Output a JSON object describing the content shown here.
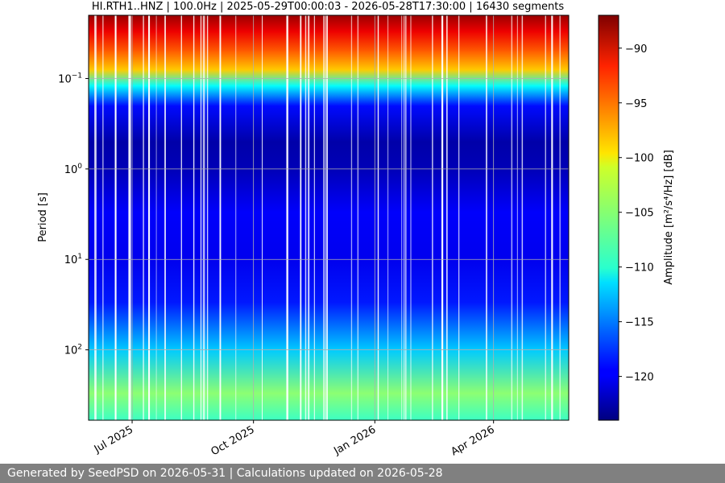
{
  "chart_data": {
    "type": "heatmap",
    "title": "HI.RTH1..HNZ | 100.0Hz | 2025-05-29T00:00:03 - 2026-05-28T17:30:00 | 16430 segments",
    "xlabel": "",
    "ylabel": "Period [s]",
    "x_range": [
      "2025-05-29",
      "2026-05-28"
    ],
    "x_ticks": [
      {
        "date": "2025-07-01",
        "label": "Jul 2025"
      },
      {
        "date": "2025-10-01",
        "label": "Oct 2025"
      },
      {
        "date": "2026-01-01",
        "label": "Jan 2026"
      },
      {
        "date": "2026-04-01",
        "label": "Apr 2026"
      }
    ],
    "y_scale": "log",
    "y_range": [
      0.02,
      600
    ],
    "y_ticks": [
      {
        "value": 0.1,
        "base": "10",
        "exp": "−1"
      },
      {
        "value": 1,
        "base": "10",
        "exp": "0"
      },
      {
        "value": 10,
        "base": "10",
        "exp": "1"
      },
      {
        "value": 100,
        "base": "10",
        "exp": "2"
      }
    ],
    "grid": true,
    "colormap": "jet",
    "colorbar": {
      "label": "Amplitude [m²/s⁴/Hz] [dB]",
      "range": [
        -124,
        -87
      ],
      "ticks": [
        -90,
        -95,
        -100,
        -105,
        -110,
        -115,
        -120
      ]
    },
    "amplitude_profile": [
      {
        "period": 0.02,
        "db": -88
      },
      {
        "period": 0.03,
        "db": -91
      },
      {
        "period": 0.05,
        "db": -95
      },
      {
        "period": 0.08,
        "db": -99
      },
      {
        "period": 0.12,
        "db": -110
      },
      {
        "period": 0.2,
        "db": -119
      },
      {
        "period": 0.5,
        "db": -122.5
      },
      {
        "period": 1,
        "db": -122
      },
      {
        "period": 3,
        "db": -119.5
      },
      {
        "period": 10,
        "db": -120
      },
      {
        "period": 30,
        "db": -118.5
      },
      {
        "period": 100,
        "db": -112
      },
      {
        "period": 300,
        "db": -105
      },
      {
        "period": 600,
        "db": -108
      }
    ]
  },
  "footer": {
    "text": "Generated by SeedPSD on 2026-05-31 | Calculations updated on 2026-05-28"
  }
}
